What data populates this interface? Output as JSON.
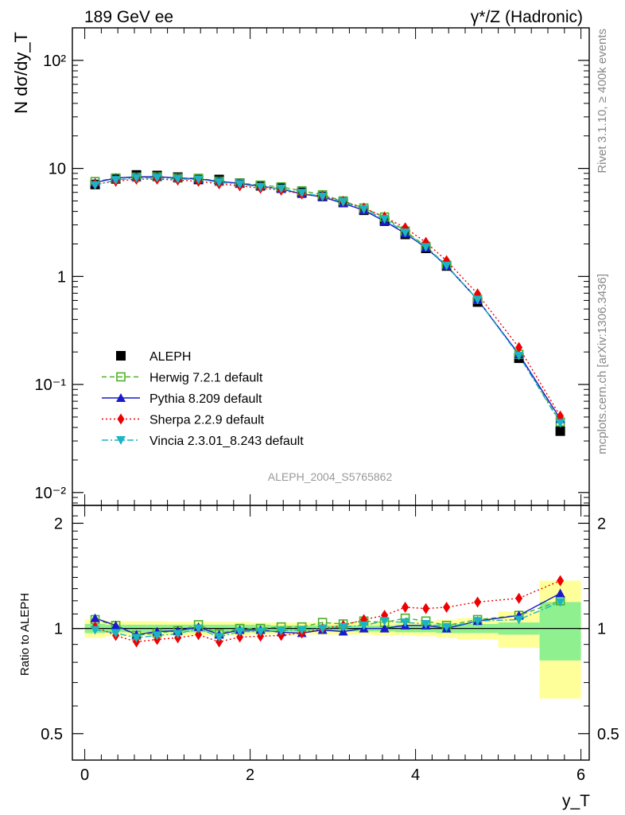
{
  "header": {
    "left": "189 GeV ee",
    "right": "γ*/Z (Hadronic)"
  },
  "side_labels": {
    "top": "Rivet 3.1.10, ≥ 400k events",
    "bottom": "mcplots.cern.ch [arXiv:1306.3436]"
  },
  "colors": {
    "data": "#000000",
    "herwig": "#4caf26",
    "pythia": "#1a1acc",
    "sherpa": "#ee0000",
    "vincia": "#1cb4c4",
    "band_inner": "#8ef08e",
    "band_outer": "#ffff99"
  },
  "chart_data": [
    {
      "type": "line",
      "title": "ALEPH_2004_S5765862",
      "ylabel": "N dσ/dy_T",
      "xlim": [
        -0.15,
        6.1
      ],
      "ylim": [
        0.0076,
        200
      ],
      "yscale": "log",
      "ytick_labels": [
        "10²",
        "10",
        "1",
        "10⁻¹",
        "10⁻²"
      ],
      "x": [
        0.125,
        0.375,
        0.625,
        0.875,
        1.125,
        1.375,
        1.625,
        1.875,
        2.125,
        2.375,
        2.625,
        2.875,
        3.125,
        3.375,
        3.625,
        3.875,
        4.125,
        4.375,
        4.75,
        5.25,
        5.75
      ],
      "series": [
        {
          "name": "ALEPH",
          "key": "data",
          "marker": "square",
          "values": [
            7.1,
            8.0,
            8.7,
            8.6,
            8.3,
            7.9,
            7.9,
            7.3,
            6.9,
            6.6,
            6.0,
            5.5,
            4.85,
            4.1,
            3.25,
            2.45,
            1.82,
            1.25,
            0.58,
            0.175,
            0.037
          ]
        },
        {
          "name": "Herwig 7.2.1 default",
          "key": "herwig",
          "marker": "open-square",
          "values": [
            7.55,
            8.15,
            8.3,
            8.35,
            8.15,
            8.1,
            7.6,
            7.3,
            7.0,
            6.75,
            6.2,
            5.7,
            5.0,
            4.3,
            3.55,
            2.63,
            1.9,
            1.27,
            0.615,
            0.19,
            0.045
          ]
        },
        {
          "name": "Pythia 8.209 default",
          "key": "pythia",
          "marker": "triangle-up",
          "values": [
            7.4,
            8.15,
            8.35,
            8.4,
            8.15,
            8.0,
            7.6,
            7.25,
            6.85,
            6.45,
            5.8,
            5.45,
            4.75,
            4.1,
            3.25,
            2.5,
            1.85,
            1.25,
            0.61,
            0.19,
            0.048
          ]
        },
        {
          "name": "Sherpa 2.2.9 default",
          "key": "sherpa",
          "marker": "diamond",
          "values": [
            7.15,
            7.6,
            7.95,
            7.95,
            7.8,
            7.6,
            7.2,
            6.9,
            6.55,
            6.3,
            5.8,
            5.55,
            4.95,
            4.3,
            3.55,
            2.82,
            2.07,
            1.4,
            0.69,
            0.22,
            0.051
          ]
        },
        {
          "name": "Vincia 2.3.01_8.243 default",
          "key": "vincia",
          "marker": "triangle-down",
          "values": [
            7.0,
            7.8,
            8.15,
            8.2,
            8.0,
            7.9,
            7.45,
            7.15,
            6.75,
            6.5,
            5.95,
            5.5,
            4.9,
            4.2,
            3.4,
            2.55,
            1.87,
            1.26,
            0.61,
            0.185,
            0.044
          ]
        }
      ]
    },
    {
      "type": "line",
      "ylabel": "Ratio to ALEPH",
      "xlabel": "y_T",
      "xlim": [
        -0.15,
        6.1
      ],
      "ylim": [
        0.42,
        2.25
      ],
      "yscale": "log",
      "ytick_labels": [
        "2",
        "1",
        "0.5"
      ],
      "xtick_labels": [
        "0",
        "2",
        "4",
        "6"
      ],
      "band_bins": [
        0,
        0.25,
        0.5,
        0.75,
        1.0,
        1.25,
        1.5,
        1.75,
        2.0,
        2.25,
        2.5,
        2.75,
        3.0,
        3.25,
        3.5,
        3.75,
        4.0,
        4.25,
        4.5,
        5.0,
        5.5,
        6.0
      ],
      "band_inner_err": [
        0.03,
        0.025,
        0.025,
        0.025,
        0.025,
        0.025,
        0.025,
        0.025,
        0.025,
        0.02,
        0.02,
        0.02,
        0.02,
        0.02,
        0.02,
        0.025,
        0.025,
        0.03,
        0.03,
        0.04,
        0.19
      ],
      "band_outer_err": [
        0.06,
        0.05,
        0.05,
        0.05,
        0.045,
        0.045,
        0.045,
        0.045,
        0.04,
        0.04,
        0.04,
        0.04,
        0.04,
        0.04,
        0.045,
        0.045,
        0.05,
        0.06,
        0.07,
        0.12,
        0.37
      ],
      "series": [
        {
          "name": "Herwig 7.2.1 default",
          "key": "herwig",
          "marker": "open-square",
          "values": [
            1.06,
            1.02,
            0.955,
            0.97,
            0.985,
            1.025,
            0.965,
            1.0,
            1.0,
            1.01,
            1.01,
            1.04,
            1.03,
            1.05,
            1.04,
            1.07,
            1.05,
            1.02,
            1.06,
            1.09,
            1.2
          ]
        },
        {
          "name": "Pythia 8.209 default",
          "key": "pythia",
          "marker": "triangle-up",
          "values": [
            1.07,
            1.02,
            0.96,
            0.98,
            0.985,
            1.01,
            0.96,
            0.99,
            0.99,
            0.975,
            0.97,
            0.99,
            0.98,
            1.0,
            1.0,
            1.02,
            1.02,
            1.0,
            1.05,
            1.09,
            1.26
          ]
        },
        {
          "name": "Sherpa 2.2.9 default",
          "key": "sherpa",
          "marker": "diamond",
          "values": [
            1.01,
            0.955,
            0.915,
            0.93,
            0.94,
            0.96,
            0.915,
            0.945,
            0.95,
            0.955,
            0.97,
            1.0,
            1.02,
            1.06,
            1.09,
            1.15,
            1.14,
            1.15,
            1.19,
            1.22,
            1.37
          ]
        },
        {
          "name": "Vincia 2.3.01_8.243 default",
          "key": "vincia",
          "marker": "triangle-down",
          "values": [
            0.99,
            0.97,
            0.94,
            0.955,
            0.965,
            1.0,
            0.945,
            0.98,
            0.98,
            0.985,
            0.99,
            1.0,
            1.01,
            1.02,
            1.05,
            1.04,
            1.03,
            1.01,
            1.05,
            1.06,
            1.19
          ]
        }
      ]
    }
  ]
}
